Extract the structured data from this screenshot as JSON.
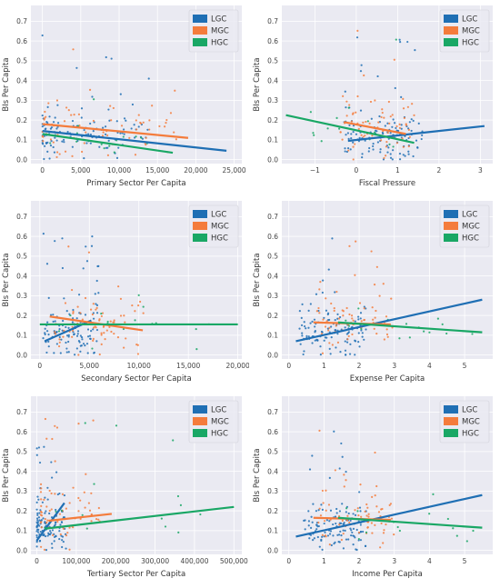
{
  "chart_data": [
    {
      "type": "scatter",
      "xlabel": "Primary Sector Per Capita",
      "ylabel": "BIs Per Capita",
      "xlim": [
        -1500,
        26000
      ],
      "ylim": [
        -0.02,
        0.78
      ],
      "xticks": [
        0,
        5000,
        10000,
        15000,
        20000,
        25000
      ],
      "xtick_labels": [
        "0",
        "5,000",
        "10,000",
        "15,000",
        "20,000",
        "25,000"
      ],
      "yticks": [
        0.0,
        0.1,
        0.2,
        0.3,
        0.4,
        0.5,
        0.6,
        0.7
      ],
      "ytick_labels": [
        "0.0",
        "0.1",
        "0.2",
        "0.3",
        "0.4",
        "0.5",
        "0.6",
        "0.7"
      ],
      "grid": true,
      "legend": "top-right",
      "series": [
        {
          "name": "LGC",
          "color": "#1f6fb4",
          "fit": [
            [
              0,
              0.145
            ],
            [
              24000,
              0.045
            ]
          ],
          "cloud": {
            "x_min": 0,
            "x_max": 14000,
            "x_power": 1.8,
            "y_center": 0.14,
            "y_spread": 0.06,
            "count": 120
          }
        },
        {
          "name": "MGC",
          "color": "#f47c3c",
          "fit": [
            [
              0,
              0.18
            ],
            [
              19000,
              0.11
            ]
          ],
          "cloud": {
            "x_min": 0,
            "x_max": 18000,
            "x_power": 1.6,
            "y_center": 0.16,
            "y_spread": 0.08,
            "count": 70
          }
        },
        {
          "name": "HGC",
          "color": "#19a765",
          "fit": [
            [
              0,
              0.13
            ],
            [
              17000,
              0.035
            ]
          ],
          "cloud": {
            "x_min": 0,
            "x_max": 16000,
            "x_power": 1.6,
            "y_center": 0.12,
            "y_spread": 0.06,
            "count": 15
          }
        }
      ]
    },
    {
      "type": "scatter",
      "xlabel": "Fiscal Pressure",
      "ylabel": "BIs Per Capita",
      "xlim": [
        -1.8,
        3.3
      ],
      "ylim": [
        -0.02,
        0.78
      ],
      "xticks": [
        -1,
        0,
        1,
        2,
        3
      ],
      "xtick_labels": [
        "−1",
        "0",
        "1",
        "2",
        "3"
      ],
      "yticks": [
        0.0,
        0.1,
        0.2,
        0.3,
        0.4,
        0.5,
        0.6,
        0.7
      ],
      "ytick_labels": [
        "0.0",
        "0.1",
        "0.2",
        "0.3",
        "0.4",
        "0.5",
        "0.6",
        "0.7"
      ],
      "grid": true,
      "legend": "top-right",
      "series": [
        {
          "name": "LGC",
          "color": "#1f6fb4",
          "fit": [
            [
              -0.2,
              0.095
            ],
            [
              3.1,
              0.17
            ]
          ],
          "cloud": {
            "x_min": -0.3,
            "x_max": 1.6,
            "x_power": 1.0,
            "y_center": 0.12,
            "y_spread": 0.06,
            "count": 120
          }
        },
        {
          "name": "MGC",
          "color": "#f47c3c",
          "fit": [
            [
              -0.3,
              0.19
            ],
            [
              1.2,
              0.13
            ]
          ],
          "cloud": {
            "x_min": -0.4,
            "x_max": 1.4,
            "x_power": 1.0,
            "y_center": 0.17,
            "y_spread": 0.08,
            "count": 70
          }
        },
        {
          "name": "HGC",
          "color": "#19a765",
          "fit": [
            [
              -1.7,
              0.225
            ],
            [
              1.4,
              0.085
            ]
          ],
          "cloud": {
            "x_min": -1.5,
            "x_max": 1.4,
            "x_power": 1.0,
            "y_center": 0.14,
            "y_spread": 0.06,
            "count": 15
          }
        }
      ]
    },
    {
      "type": "scatter",
      "xlabel": "Secondary Sector Per Capita",
      "ylabel": "BIs Per Capita",
      "xlim": [
        -900,
        20400
      ],
      "ylim": [
        -0.02,
        0.78
      ],
      "xticks": [
        0,
        5000,
        10000,
        15000,
        20000
      ],
      "xtick_labels": [
        "0",
        "5,000",
        "10,000",
        "15,000",
        "20,000"
      ],
      "yticks": [
        0.0,
        0.1,
        0.2,
        0.3,
        0.4,
        0.5,
        0.6,
        0.7
      ],
      "ytick_labels": [
        "0.0",
        "0.1",
        "0.2",
        "0.3",
        "0.4",
        "0.5",
        "0.6",
        "0.7"
      ],
      "grid": true,
      "legend": "top-right",
      "series": [
        {
          "name": "LGC",
          "color": "#1f6fb4",
          "fit": [
            [
              500,
              0.07
            ],
            [
              5200,
              0.175
            ]
          ],
          "cloud": {
            "x_min": 300,
            "x_max": 6000,
            "x_power": 1.0,
            "y_center": 0.12,
            "y_spread": 0.06,
            "count": 120
          }
        },
        {
          "name": "MGC",
          "color": "#f47c3c",
          "fit": [
            [
              1000,
              0.195
            ],
            [
              10400,
              0.125
            ]
          ],
          "cloud": {
            "x_min": 1500,
            "x_max": 10500,
            "x_power": 1.2,
            "y_center": 0.17,
            "y_spread": 0.08,
            "count": 70
          }
        },
        {
          "name": "HGC",
          "color": "#19a765",
          "fit": [
            [
              0,
              0.155
            ],
            [
              20000,
              0.155
            ]
          ],
          "cloud": {
            "x_min": 1000,
            "x_max": 19000,
            "x_power": 1.5,
            "y_center": 0.15,
            "y_spread": 0.06,
            "count": 15
          }
        }
      ]
    },
    {
      "type": "scatter",
      "xlabel": "Expense Per Capita",
      "ylabel": "BIs Per Capita",
      "xlim": [
        -0.2,
        5.8
      ],
      "ylim": [
        -0.02,
        0.78
      ],
      "xticks": [
        0,
        1,
        2,
        3,
        4,
        5
      ],
      "xtick_labels": [
        "0",
        "1",
        "2",
        "3",
        "4",
        "5"
      ],
      "yticks": [
        0.0,
        0.1,
        0.2,
        0.3,
        0.4,
        0.5,
        0.6,
        0.7
      ],
      "ytick_labels": [
        "0.0",
        "0.1",
        "0.2",
        "0.3",
        "0.4",
        "0.5",
        "0.6",
        "0.7"
      ],
      "grid": true,
      "legend": "top-right",
      "series": [
        {
          "name": "LGC",
          "color": "#1f6fb4",
          "fit": [
            [
              0.2,
              0.07
            ],
            [
              5.5,
              0.28
            ]
          ],
          "cloud": {
            "x_min": 0.3,
            "x_max": 2.2,
            "x_power": 1.0,
            "y_center": 0.12,
            "y_spread": 0.06,
            "count": 120
          }
        },
        {
          "name": "MGC",
          "color": "#f47c3c",
          "fit": [
            [
              0.7,
              0.165
            ],
            [
              2.9,
              0.155
            ]
          ],
          "cloud": {
            "x_min": 0.8,
            "x_max": 3.0,
            "x_power": 1.0,
            "y_center": 0.17,
            "y_spread": 0.08,
            "count": 70
          }
        },
        {
          "name": "HGC",
          "color": "#19a765",
          "fit": [
            [
              1.4,
              0.165
            ],
            [
              5.5,
              0.115
            ]
          ],
          "cloud": {
            "x_min": 1.5,
            "x_max": 5.5,
            "x_power": 1.0,
            "y_center": 0.15,
            "y_spread": 0.06,
            "count": 15
          }
        }
      ]
    },
    {
      "type": "scatter",
      "xlabel": "Tertiary Sector Per Capita",
      "ylabel": "BIs Per Capita",
      "xlim": [
        -15000,
        520000
      ],
      "ylim": [
        -0.02,
        0.78
      ],
      "xticks": [
        0,
        100000,
        200000,
        300000,
        400000,
        500000
      ],
      "xtick_labels": [
        "0",
        "100,000",
        "200,000",
        "300,000",
        "400,000",
        "500,000"
      ],
      "yticks": [
        0.0,
        0.1,
        0.2,
        0.3,
        0.4,
        0.5,
        0.6,
        0.7
      ],
      "ytick_labels": [
        "0.0",
        "0.1",
        "0.2",
        "0.3",
        "0.4",
        "0.5",
        "0.6",
        "0.7"
      ],
      "grid": true,
      "legend": "top-right",
      "series": [
        {
          "name": "LGC",
          "color": "#1f6fb4",
          "fit": [
            [
              0,
              0.05
            ],
            [
              70000,
              0.24
            ]
          ],
          "cloud": {
            "x_min": 0,
            "x_max": 75000,
            "x_power": 1.6,
            "y_center": 0.12,
            "y_spread": 0.06,
            "count": 120
          }
        },
        {
          "name": "MGC",
          "color": "#f47c3c",
          "fit": [
            [
              30000,
              0.15
            ],
            [
              190000,
              0.185
            ]
          ],
          "cloud": {
            "x_min": 10000,
            "x_max": 160000,
            "x_power": 1.8,
            "y_center": 0.17,
            "y_spread": 0.08,
            "count": 70
          }
        },
        {
          "name": "HGC",
          "color": "#19a765",
          "fit": [
            [
              20000,
              0.11
            ],
            [
              500000,
              0.22
            ]
          ],
          "cloud": {
            "x_min": 20000,
            "x_max": 500000,
            "x_power": 1.6,
            "y_center": 0.15,
            "y_spread": 0.06,
            "count": 15
          }
        }
      ]
    },
    {
      "type": "scatter",
      "xlabel": "Income Per Capita",
      "ylabel": "BIs Per Capita",
      "xlim": [
        -0.2,
        5.8
      ],
      "ylim": [
        -0.02,
        0.78
      ],
      "xticks": [
        0,
        1,
        2,
        3,
        4,
        5
      ],
      "xtick_labels": [
        "0",
        "1",
        "2",
        "3",
        "4",
        "5"
      ],
      "yticks": [
        0.0,
        0.1,
        0.2,
        0.3,
        0.4,
        0.5,
        0.6,
        0.7
      ],
      "ytick_labels": [
        "0.0",
        "0.1",
        "0.2",
        "0.3",
        "0.4",
        "0.5",
        "0.6",
        "0.7"
      ],
      "grid": true,
      "legend": "top-right",
      "series": [
        {
          "name": "LGC",
          "color": "#1f6fb4",
          "fit": [
            [
              0.2,
              0.07
            ],
            [
              5.5,
              0.28
            ]
          ],
          "cloud": {
            "x_min": 0.3,
            "x_max": 2.2,
            "x_power": 1.0,
            "y_center": 0.12,
            "y_spread": 0.06,
            "count": 120
          }
        },
        {
          "name": "MGC",
          "color": "#f47c3c",
          "fit": [
            [
              0.7,
              0.165
            ],
            [
              2.9,
              0.155
            ]
          ],
          "cloud": {
            "x_min": 0.8,
            "x_max": 3.0,
            "x_power": 1.0,
            "y_center": 0.17,
            "y_spread": 0.08,
            "count": 70
          }
        },
        {
          "name": "HGC",
          "color": "#19a765",
          "fit": [
            [
              1.4,
              0.165
            ],
            [
              5.5,
              0.115
            ]
          ],
          "cloud": {
            "x_min": 1.5,
            "x_max": 5.5,
            "x_power": 1.0,
            "y_center": 0.15,
            "y_spread": 0.06,
            "count": 15
          }
        }
      ]
    }
  ]
}
